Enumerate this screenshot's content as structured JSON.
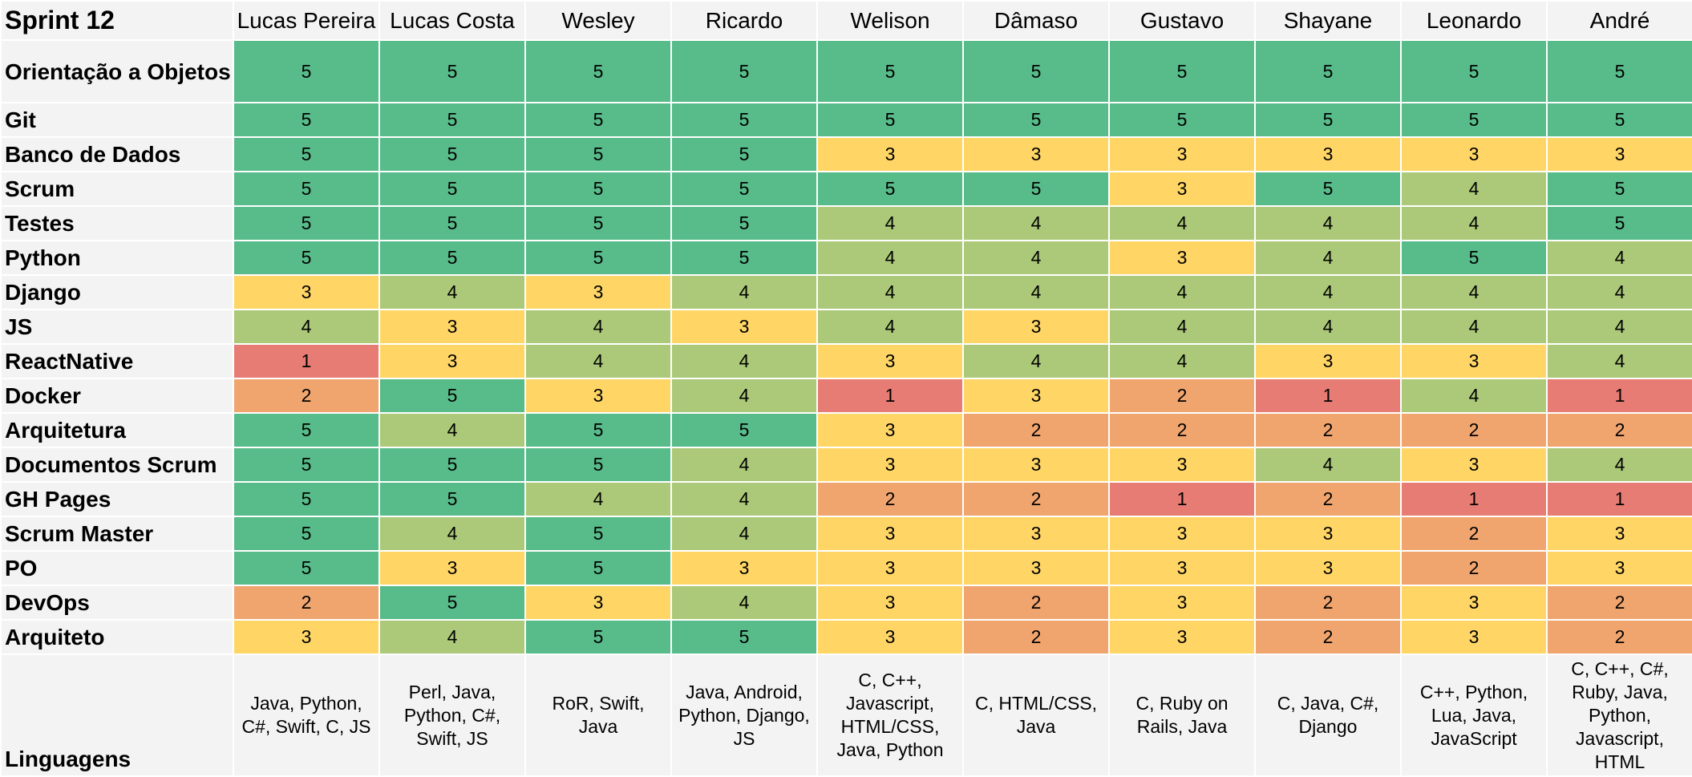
{
  "sheet": {
    "title": "Sprint 12",
    "members": [
      "Lucas Pereira",
      "Lucas Costa",
      "Wesley",
      "Ricardo",
      "Welison",
      "Dâmaso",
      "Gustavo",
      "Shayane",
      "Leonardo",
      "André"
    ],
    "rows": [
      {
        "label": "Orientação a Objetos",
        "scores": [
          5,
          5,
          5,
          5,
          5,
          5,
          5,
          5,
          5,
          5
        ]
      },
      {
        "label": "Git",
        "scores": [
          5,
          5,
          5,
          5,
          5,
          5,
          5,
          5,
          5,
          5
        ]
      },
      {
        "label": "Banco de Dados",
        "scores": [
          5,
          5,
          5,
          5,
          3,
          3,
          3,
          3,
          3,
          3
        ]
      },
      {
        "label": "Scrum",
        "scores": [
          5,
          5,
          5,
          5,
          5,
          5,
          3,
          5,
          4,
          5
        ]
      },
      {
        "label": "Testes",
        "scores": [
          5,
          5,
          5,
          5,
          4,
          4,
          4,
          4,
          4,
          5
        ]
      },
      {
        "label": "Python",
        "scores": [
          5,
          5,
          5,
          5,
          4,
          4,
          3,
          4,
          5,
          4
        ]
      },
      {
        "label": "Django",
        "scores": [
          3,
          4,
          3,
          4,
          4,
          4,
          4,
          4,
          4,
          4
        ]
      },
      {
        "label": "JS",
        "scores": [
          4,
          3,
          4,
          3,
          4,
          3,
          4,
          4,
          4,
          4
        ]
      },
      {
        "label": "ReactNative",
        "scores": [
          1,
          3,
          4,
          4,
          3,
          4,
          4,
          3,
          3,
          4
        ]
      },
      {
        "label": "Docker",
        "scores": [
          2,
          5,
          3,
          4,
          1,
          3,
          2,
          1,
          4,
          1
        ]
      },
      {
        "label": "Arquitetura",
        "scores": [
          5,
          4,
          5,
          5,
          3,
          2,
          2,
          2,
          2,
          2
        ]
      },
      {
        "label": "Documentos Scrum",
        "scores": [
          5,
          5,
          5,
          4,
          3,
          3,
          3,
          4,
          3,
          4
        ]
      },
      {
        "label": "GH Pages",
        "scores": [
          5,
          5,
          4,
          4,
          2,
          2,
          1,
          2,
          1,
          1
        ]
      },
      {
        "label": "Scrum Master",
        "scores": [
          5,
          4,
          5,
          4,
          3,
          3,
          3,
          3,
          2,
          3
        ]
      },
      {
        "label": "PO",
        "scores": [
          5,
          3,
          5,
          3,
          3,
          3,
          3,
          3,
          2,
          3
        ]
      },
      {
        "label": "DevOps",
        "scores": [
          2,
          5,
          3,
          4,
          3,
          2,
          3,
          2,
          3,
          2
        ]
      },
      {
        "label": "Arquiteto",
        "scores": [
          3,
          4,
          5,
          5,
          3,
          2,
          3,
          2,
          3,
          2
        ]
      }
    ],
    "languages_label": "Linguagens",
    "languages": [
      [
        "Java, Python,",
        "C#, Swift, C, JS"
      ],
      [
        "Perl, Java,",
        "Python, C#,",
        "Swift, JS"
      ],
      [
        "RoR, Swift,",
        "Java"
      ],
      [
        "Java, Android,",
        "Python, Django,",
        "JS"
      ],
      [
        "C, C++,",
        "Javascript,",
        "HTML/CSS,",
        "Java, Python"
      ],
      [
        "C, HTML/CSS,",
        "Java"
      ],
      [
        "C, Ruby on",
        "Rails, Java"
      ],
      [
        "C, Java, C#,",
        "Django"
      ],
      [
        "C++, Python,",
        "Lua, Java,",
        "JavaScript"
      ],
      [
        "C, C++, C#,",
        "Ruby, Java,",
        "Python,",
        "Javascript,",
        "HTML"
      ]
    ]
  },
  "colors": {
    "1": "#e67c73",
    "2": "#f0a56f",
    "3": "#ffd666",
    "4": "#abc978",
    "5": "#57bb8a"
  }
}
